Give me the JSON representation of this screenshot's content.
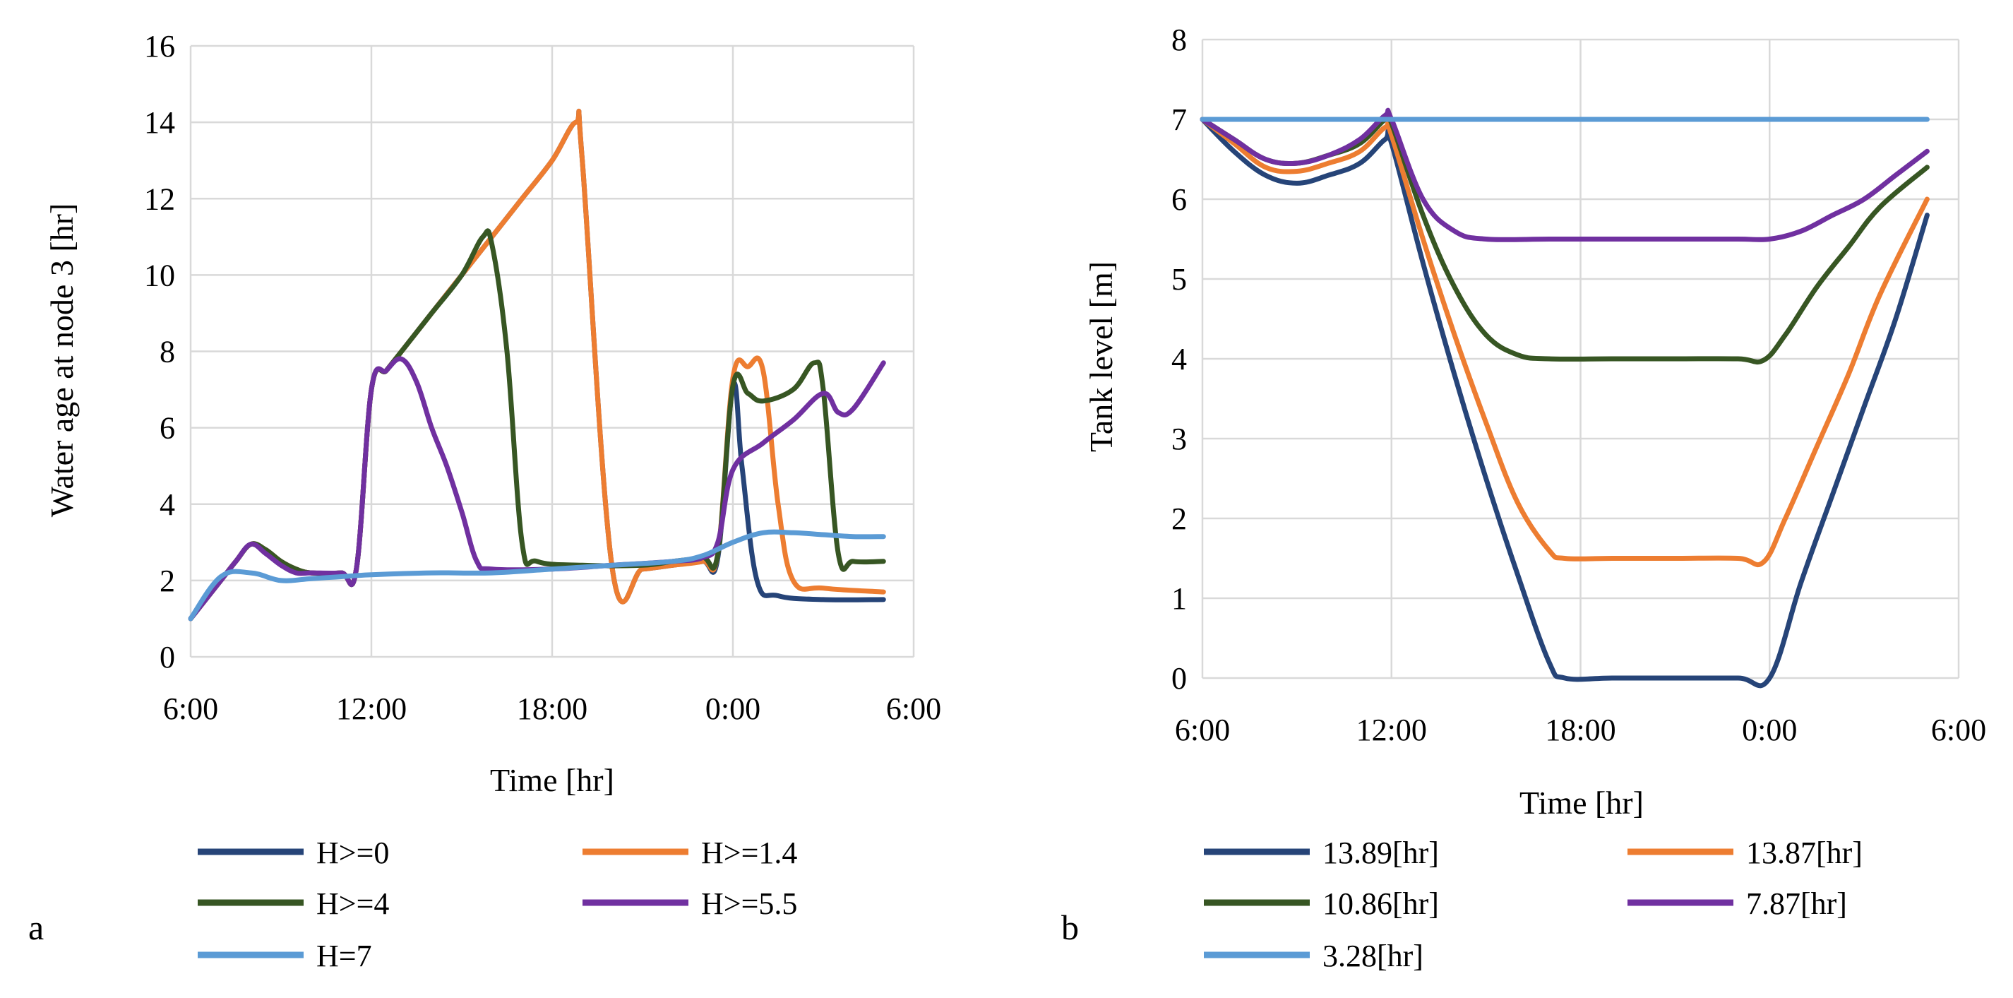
{
  "chart_data": [
    {
      "type": "line",
      "panel_label": "a",
      "title": "",
      "xlabel": "Time [hr]",
      "ylabel": "Water age at node 3 [hr]",
      "xlim": [
        6,
        30
      ],
      "ylim": [
        0,
        16
      ],
      "x_ticks": [
        6,
        12,
        18,
        24,
        30
      ],
      "x_tick_labels": [
        "6:00",
        "12:00",
        "18:00",
        "0:00",
        "6:00"
      ],
      "y_ticks": [
        0,
        2,
        4,
        6,
        8,
        10,
        12,
        14,
        16
      ],
      "y_tick_labels": [
        "0",
        "2",
        "4",
        "6",
        "8",
        "10",
        "12",
        "14",
        "16"
      ],
      "grid": true,
      "legend_position": "bottom",
      "series": [
        {
          "name": "H>=0",
          "color": "#264478",
          "points": [
            [
              6,
              1
            ],
            [
              7,
              2
            ],
            [
              7.5,
              2.5
            ],
            [
              8,
              2.95
            ],
            [
              8.5,
              2.8
            ],
            [
              9,
              2.5
            ],
            [
              9.5,
              2.3
            ],
            [
              10,
              2.2
            ],
            [
              11,
              2.2
            ],
            [
              11.5,
              2.3
            ],
            [
              12,
              7
            ],
            [
              12.5,
              7.5
            ],
            [
              13,
              8
            ],
            [
              14,
              9
            ],
            [
              15,
              10
            ],
            [
              16,
              11
            ],
            [
              17,
              12
            ],
            [
              18,
              13
            ],
            [
              18.8,
              14
            ],
            [
              19,
              13
            ],
            [
              20,
              2.3
            ],
            [
              21,
              2.3
            ],
            [
              22,
              2.4
            ],
            [
              23,
              2.5
            ],
            [
              23.5,
              2.6
            ],
            [
              24,
              7.1
            ],
            [
              24.3,
              5
            ],
            [
              24.8,
              2
            ],
            [
              25.5,
              1.6
            ],
            [
              27,
              1.5
            ],
            [
              29,
              1.5
            ]
          ]
        },
        {
          "name": "H>=1.4",
          "color": "#ED7D31",
          "points": [
            [
              6,
              1
            ],
            [
              7,
              2
            ],
            [
              7.5,
              2.5
            ],
            [
              8,
              2.95
            ],
            [
              8.5,
              2.8
            ],
            [
              9,
              2.5
            ],
            [
              9.5,
              2.3
            ],
            [
              10,
              2.2
            ],
            [
              11,
              2.2
            ],
            [
              11.5,
              2.3
            ],
            [
              12,
              7
            ],
            [
              12.5,
              7.5
            ],
            [
              13,
              8
            ],
            [
              14,
              9
            ],
            [
              15,
              10
            ],
            [
              16,
              11
            ],
            [
              17,
              12
            ],
            [
              18,
              13
            ],
            [
              18.8,
              14
            ],
            [
              19,
              13
            ],
            [
              20,
              2.3
            ],
            [
              21,
              2.3
            ],
            [
              22,
              2.4
            ],
            [
              23,
              2.5
            ],
            [
              23.5,
              2.7
            ],
            [
              24,
              7.3
            ],
            [
              24.5,
              7.6
            ],
            [
              25,
              7.5
            ],
            [
              25.5,
              4
            ],
            [
              26,
              2
            ],
            [
              27,
              1.8
            ],
            [
              29,
              1.7
            ]
          ]
        },
        {
          "name": "H>=4",
          "color": "#375623",
          "points": [
            [
              6,
              1
            ],
            [
              7,
              2
            ],
            [
              7.5,
              2.5
            ],
            [
              8,
              2.95
            ],
            [
              8.5,
              2.8
            ],
            [
              9,
              2.5
            ],
            [
              9.5,
              2.3
            ],
            [
              10,
              2.2
            ],
            [
              11,
              2.2
            ],
            [
              11.5,
              2.3
            ],
            [
              12,
              7
            ],
            [
              12.5,
              7.5
            ],
            [
              13,
              8
            ],
            [
              14,
              9
            ],
            [
              15,
              10
            ],
            [
              15.7,
              11
            ],
            [
              16,
              10.8
            ],
            [
              16.5,
              8
            ],
            [
              17,
              3
            ],
            [
              17.5,
              2.5
            ],
            [
              19,
              2.4
            ],
            [
              21,
              2.4
            ],
            [
              22,
              2.5
            ],
            [
              23,
              2.6
            ],
            [
              23.5,
              2.7
            ],
            [
              24,
              7.1
            ],
            [
              24.5,
              6.9
            ],
            [
              25,
              6.7
            ],
            [
              26,
              7
            ],
            [
              26.7,
              7.7
            ],
            [
              27,
              7
            ],
            [
              27.5,
              2.7
            ],
            [
              28,
              2.5
            ],
            [
              29,
              2.5
            ]
          ]
        },
        {
          "name": "H>=5.5",
          "color": "#7030A0",
          "points": [
            [
              6,
              1
            ],
            [
              7,
              2
            ],
            [
              7.5,
              2.5
            ],
            [
              8,
              2.95
            ],
            [
              8.5,
              2.7
            ],
            [
              9,
              2.4
            ],
            [
              9.5,
              2.2
            ],
            [
              10,
              2.2
            ],
            [
              11,
              2.2
            ],
            [
              11.5,
              2.3
            ],
            [
              12,
              7
            ],
            [
              12.5,
              7.5
            ],
            [
              13,
              7.8
            ],
            [
              13.5,
              7.2
            ],
            [
              14,
              6
            ],
            [
              14.5,
              5
            ],
            [
              15,
              3.8
            ],
            [
              15.5,
              2.5
            ],
            [
              16,
              2.3
            ],
            [
              18,
              2.3
            ],
            [
              20,
              2.4
            ],
            [
              22,
              2.5
            ],
            [
              23,
              2.6
            ],
            [
              23.5,
              3
            ],
            [
              24,
              4.9
            ],
            [
              25,
              5.6
            ],
            [
              26,
              6.2
            ],
            [
              27,
              6.9
            ],
            [
              27.5,
              6.4
            ],
            [
              28,
              6.5
            ],
            [
              29,
              7.7
            ]
          ]
        },
        {
          "name": "H=7",
          "color": "#5B9BD5",
          "points": [
            [
              6,
              1
            ],
            [
              7,
              2.1
            ],
            [
              8,
              2.2
            ],
            [
              9,
              2
            ],
            [
              10,
              2.05
            ],
            [
              11,
              2.1
            ],
            [
              12,
              2.15
            ],
            [
              14,
              2.2
            ],
            [
              16,
              2.2
            ],
            [
              18,
              2.3
            ],
            [
              20,
              2.4
            ],
            [
              22,
              2.5
            ],
            [
              23,
              2.65
            ],
            [
              24,
              3
            ],
            [
              25,
              3.25
            ],
            [
              26,
              3.25
            ],
            [
              27,
              3.2
            ],
            [
              28,
              3.15
            ],
            [
              29,
              3.15
            ]
          ]
        }
      ]
    },
    {
      "type": "line",
      "panel_label": "b",
      "title": "",
      "xlabel": "Time [hr]",
      "ylabel": "Tank level [m]",
      "xlim": [
        6,
        30
      ],
      "ylim": [
        0,
        8
      ],
      "x_ticks": [
        6,
        12,
        18,
        24,
        30
      ],
      "x_tick_labels": [
        "6:00",
        "12:00",
        "18:00",
        "0:00",
        "6:00"
      ],
      "y_ticks": [
        0,
        1,
        2,
        3,
        4,
        5,
        6,
        7,
        8
      ],
      "y_tick_labels": [
        "0",
        "1",
        "2",
        "3",
        "4",
        "5",
        "6",
        "7",
        "8"
      ],
      "grid": true,
      "legend_position": "bottom",
      "series": [
        {
          "name": "13.89[hr]",
          "color": "#264478",
          "points": [
            [
              6,
              7
            ],
            [
              7,
              6.6
            ],
            [
              8,
              6.3
            ],
            [
              9,
              6.2
            ],
            [
              10,
              6.3
            ],
            [
              11,
              6.45
            ],
            [
              11.8,
              6.75
            ],
            [
              12,
              6.7
            ],
            [
              13,
              5.2
            ],
            [
              14,
              3.8
            ],
            [
              15,
              2.5
            ],
            [
              16,
              1.3
            ],
            [
              17,
              0.2
            ],
            [
              17.5,
              0
            ],
            [
              19,
              0
            ],
            [
              21,
              0
            ],
            [
              23,
              0
            ],
            [
              24,
              0
            ],
            [
              25,
              1.2
            ],
            [
              26,
              2.3
            ],
            [
              27,
              3.4
            ],
            [
              28,
              4.5
            ],
            [
              29,
              5.8
            ]
          ]
        },
        {
          "name": "13.87[hr]",
          "color": "#ED7D31",
          "points": [
            [
              6,
              7
            ],
            [
              7,
              6.7
            ],
            [
              8,
              6.4
            ],
            [
              9,
              6.35
            ],
            [
              10,
              6.45
            ],
            [
              11,
              6.6
            ],
            [
              11.8,
              6.9
            ],
            [
              12,
              6.8
            ],
            [
              13,
              5.5
            ],
            [
              14,
              4.3
            ],
            [
              15,
              3.2
            ],
            [
              16,
              2.2
            ],
            [
              17,
              1.6
            ],
            [
              17.5,
              1.5
            ],
            [
              19,
              1.5
            ],
            [
              21,
              1.5
            ],
            [
              23,
              1.5
            ],
            [
              23.8,
              1.45
            ],
            [
              24.5,
              2
            ],
            [
              25.5,
              2.9
            ],
            [
              26.5,
              3.8
            ],
            [
              27.5,
              4.8
            ],
            [
              29,
              6
            ]
          ]
        },
        {
          "name": "10.86[hr]",
          "color": "#375623",
          "points": [
            [
              6,
              7
            ],
            [
              7,
              6.75
            ],
            [
              8,
              6.5
            ],
            [
              9,
              6.45
            ],
            [
              10,
              6.55
            ],
            [
              11,
              6.7
            ],
            [
              11.8,
              7
            ],
            [
              12,
              6.95
            ],
            [
              13,
              5.8
            ],
            [
              14,
              4.9
            ],
            [
              15,
              4.3
            ],
            [
              16,
              4.05
            ],
            [
              17,
              4
            ],
            [
              19,
              4
            ],
            [
              21,
              4
            ],
            [
              23,
              4
            ],
            [
              23.8,
              3.98
            ],
            [
              24.5,
              4.3
            ],
            [
              25.5,
              4.9
            ],
            [
              26.5,
              5.4
            ],
            [
              27.5,
              5.9
            ],
            [
              29,
              6.4
            ]
          ]
        },
        {
          "name": "7.87[hr]",
          "color": "#7030A0",
          "points": [
            [
              6,
              7
            ],
            [
              7,
              6.75
            ],
            [
              8,
              6.5
            ],
            [
              9,
              6.45
            ],
            [
              10,
              6.55
            ],
            [
              11,
              6.75
            ],
            [
              11.8,
              7.05
            ],
            [
              12,
              7
            ],
            [
              13,
              6
            ],
            [
              14,
              5.6
            ],
            [
              15,
              5.5
            ],
            [
              17,
              5.5
            ],
            [
              19,
              5.5
            ],
            [
              21,
              5.5
            ],
            [
              23,
              5.5
            ],
            [
              24,
              5.5
            ],
            [
              25,
              5.6
            ],
            [
              26,
              5.8
            ],
            [
              27,
              6
            ],
            [
              28,
              6.3
            ],
            [
              29,
              6.6
            ]
          ]
        },
        {
          "name": "3.28[hr]",
          "color": "#5B9BD5",
          "points": [
            [
              6,
              7
            ],
            [
              8,
              7
            ],
            [
              10,
              7
            ],
            [
              12,
              7
            ],
            [
              14,
              7
            ],
            [
              16,
              7
            ],
            [
              18,
              7
            ],
            [
              20,
              7
            ],
            [
              22,
              7
            ],
            [
              24,
              7
            ],
            [
              26,
              7
            ],
            [
              28,
              7
            ],
            [
              29,
              7
            ]
          ]
        }
      ]
    }
  ]
}
